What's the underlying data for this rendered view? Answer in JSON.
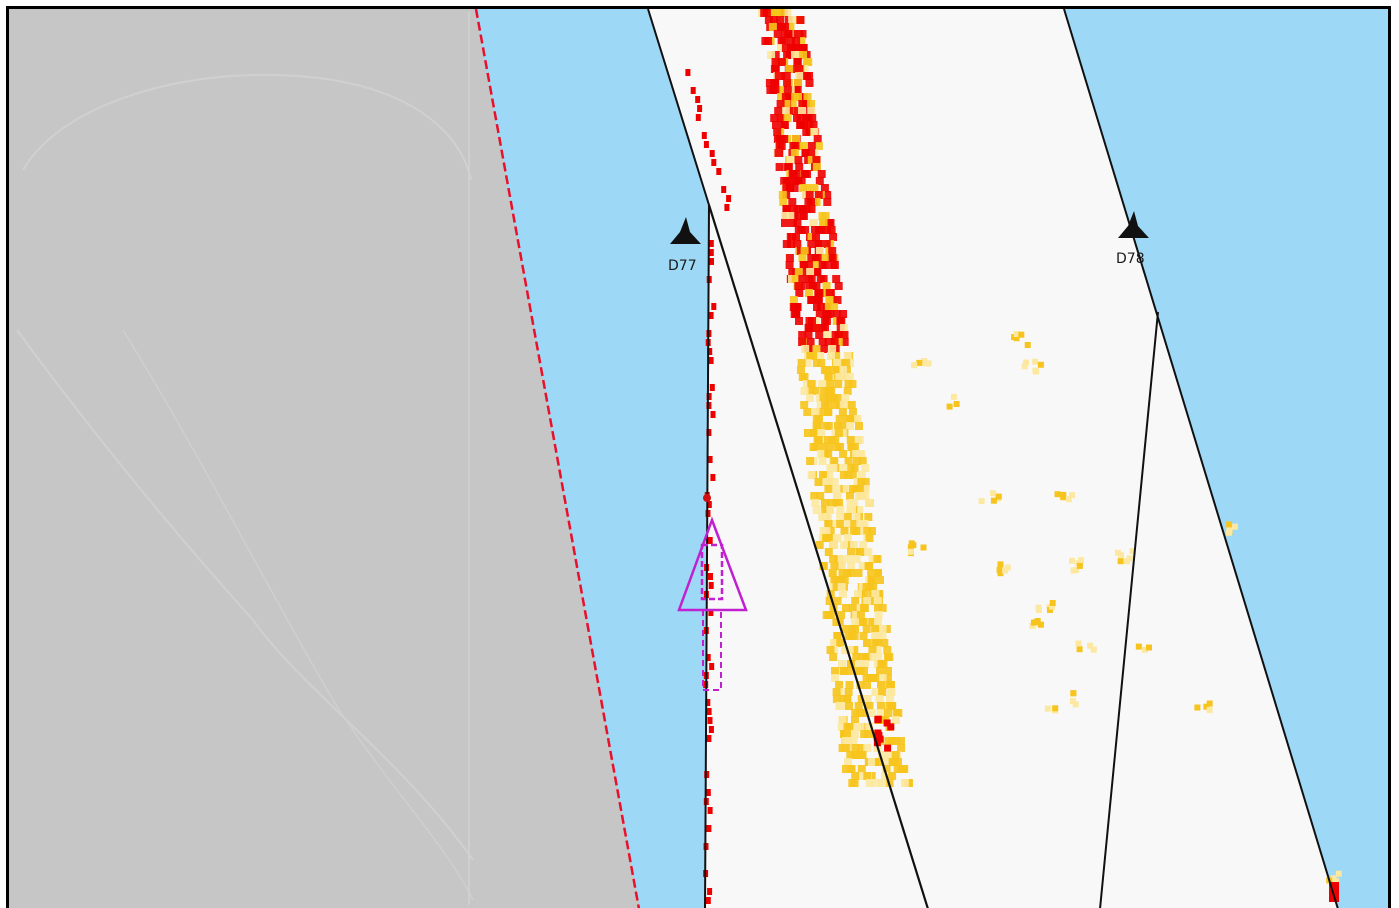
{
  "map": {
    "colors": {
      "land": "#c6c6c6",
      "shallow_water": "#9dd9f7",
      "channel": "#f8f8f8",
      "channel_edge": "#111111",
      "restricted_boundary": "#e8102a",
      "heat_low": "#fce8a0",
      "heat_mid": "#f6c41c",
      "heat_high": "#ee0000",
      "vessel": "#c020d0"
    },
    "markers": [
      {
        "id": "D77",
        "label": "D77",
        "icon": "beacon-icon"
      },
      {
        "id": "D78",
        "label": "D78",
        "icon": "beacon-icon"
      }
    ],
    "vessel": {
      "icon": "vessel-triangle-icon"
    }
  }
}
